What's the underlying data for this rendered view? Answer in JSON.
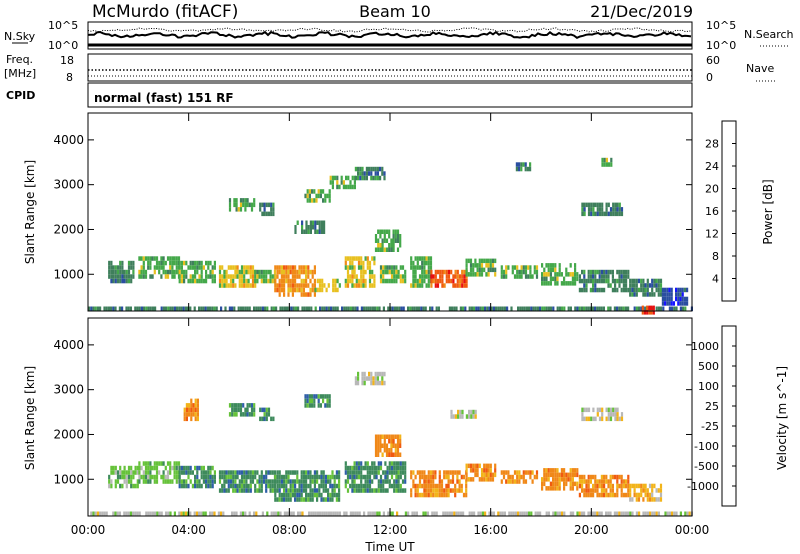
{
  "header": {
    "site": "McMurdo (fitACF)",
    "beam": "Beam 10",
    "date": "21/Dec/2019"
  },
  "noise_panel": {
    "left_label": "N.Sky",
    "right_label": "N.Search",
    "left_ticks": [
      "10^5",
      "10^0"
    ],
    "right_ticks": [
      "10^5",
      "10^0"
    ]
  },
  "freq_panel": {
    "left_label_1": "Freq.",
    "left_label_2": "[MHz]",
    "right_label": "Nave",
    "left_ticks": [
      "18",
      "8"
    ],
    "right_ticks": [
      "60",
      "0"
    ]
  },
  "cpid_panel": {
    "label": "CPID",
    "text": "normal (fast) 151 RF"
  },
  "axes": {
    "ylabel": "Slant Range [km]",
    "xlabel": "Time UT",
    "xticks": [
      "00:00",
      "04:00",
      "08:00",
      "12:00",
      "16:00",
      "20:00",
      "00:00"
    ],
    "yticks": [
      "1000",
      "2000",
      "3000",
      "4000"
    ]
  },
  "colors": {
    "ground_band": "#9a9a9a",
    "bar_black": "#000000"
  },
  "chart_data": [
    {
      "type": "heatmap",
      "title": "",
      "quantity_label": "Power [dB]",
      "xlabel": "Time UT",
      "ylabel": "Slant Range [km]",
      "xlim_hours": [
        0,
        24
      ],
      "ylim_km": [
        180,
        4600
      ],
      "colorbar_ticks": [
        "4",
        "8",
        "12",
        "16",
        "20",
        "24",
        "28"
      ],
      "colorbar_colors": [
        "#1414ff",
        "#2a4ea0",
        "#3f7f5c",
        "#44a84a",
        "#e8c020",
        "#f08a18",
        "#f05a10",
        "#e81010"
      ],
      "regions": [
        {
          "t0": 0.0,
          "t1": 24.0,
          "r0": 180,
          "r1": 280,
          "c": 2
        },
        {
          "t0": 0.8,
          "t1": 1.8,
          "r0": 800,
          "r1": 1300,
          "c": 2
        },
        {
          "t0": 2.0,
          "t1": 3.6,
          "r0": 900,
          "r1": 1400,
          "c": 3
        },
        {
          "t0": 3.6,
          "t1": 5.0,
          "r0": 850,
          "r1": 1300,
          "c": 3
        },
        {
          "t0": 5.2,
          "t1": 6.6,
          "r0": 700,
          "r1": 1200,
          "c": 4
        },
        {
          "t0": 6.6,
          "t1": 7.4,
          "r0": 800,
          "r1": 1100,
          "c": 3
        },
        {
          "t0": 7.4,
          "t1": 9.0,
          "r0": 550,
          "r1": 1200,
          "c": 5
        },
        {
          "t0": 9.0,
          "t1": 10.0,
          "r0": 600,
          "r1": 900,
          "c": 4
        },
        {
          "t0": 10.2,
          "t1": 11.4,
          "r0": 700,
          "r1": 1400,
          "c": 4
        },
        {
          "t0": 11.6,
          "t1": 12.6,
          "r0": 800,
          "r1": 1200,
          "c": 3
        },
        {
          "t0": 12.8,
          "t1": 13.6,
          "r0": 700,
          "r1": 1400,
          "c": 3
        },
        {
          "t0": 13.6,
          "t1": 15.0,
          "r0": 700,
          "r1": 1100,
          "c": 6
        },
        {
          "t0": 15.0,
          "t1": 16.2,
          "r0": 950,
          "r1": 1350,
          "c": 3
        },
        {
          "t0": 16.4,
          "t1": 17.8,
          "r0": 900,
          "r1": 1200,
          "c": 3
        },
        {
          "t0": 18.0,
          "t1": 19.4,
          "r0": 750,
          "r1": 1250,
          "c": 3
        },
        {
          "t0": 19.5,
          "t1": 21.5,
          "r0": 600,
          "r1": 1100,
          "c": 2
        },
        {
          "t0": 21.5,
          "t1": 22.8,
          "r0": 500,
          "r1": 900,
          "c": 2
        },
        {
          "t0": 22.8,
          "t1": 23.8,
          "r0": 300,
          "r1": 700,
          "c": 1
        },
        {
          "t0": 22.0,
          "t1": 22.5,
          "r0": 180,
          "r1": 300,
          "c": 7
        },
        {
          "t0": 5.6,
          "t1": 6.6,
          "r0": 2400,
          "r1": 2700,
          "c": 3
        },
        {
          "t0": 6.8,
          "t1": 7.4,
          "r0": 2300,
          "r1": 2600,
          "c": 2
        },
        {
          "t0": 8.2,
          "t1": 9.4,
          "r0": 1900,
          "r1": 2200,
          "c": 2
        },
        {
          "t0": 8.6,
          "t1": 9.6,
          "r0": 2600,
          "r1": 2900,
          "c": 3
        },
        {
          "t0": 9.6,
          "t1": 10.6,
          "r0": 2900,
          "r1": 3200,
          "c": 3
        },
        {
          "t0": 10.6,
          "t1": 11.8,
          "r0": 3100,
          "r1": 3400,
          "c": 2
        },
        {
          "t0": 11.4,
          "t1": 12.4,
          "r0": 1500,
          "r1": 2000,
          "c": 3
        },
        {
          "t0": 17.0,
          "t1": 17.6,
          "r0": 3300,
          "r1": 3500,
          "c": 2
        },
        {
          "t0": 19.6,
          "t1": 21.2,
          "r0": 2300,
          "r1": 2600,
          "c": 2
        },
        {
          "t0": 20.4,
          "t1": 20.8,
          "r0": 3450,
          "r1": 3600,
          "c": 3
        }
      ]
    },
    {
      "type": "heatmap",
      "title": "",
      "quantity_label": "Velocity [m s^-1]",
      "xlabel": "Time UT",
      "ylabel": "Slant Range [km]",
      "xlim_hours": [
        0,
        24
      ],
      "ylim_km": [
        180,
        4600
      ],
      "colorbar_ticks": [
        "1000",
        "500",
        "100",
        "25",
        "-25",
        "-100",
        "-500",
        "-1000"
      ],
      "colorbar_colors": [
        "#2030c8",
        "#2e5ea8",
        "#3e8a5c",
        "#66c23a",
        "#b8b8b8",
        "#f2b41a",
        "#f08818",
        "#f05a10",
        "#e81010"
      ],
      "regions": [
        {
          "t0": 0.0,
          "t1": 24.0,
          "r0": 180,
          "r1": 280,
          "c": 4
        },
        {
          "t0": 0.8,
          "t1": 2.0,
          "r0": 800,
          "r1": 1300,
          "c": 3
        },
        {
          "t0": 2.0,
          "t1": 3.6,
          "r0": 900,
          "r1": 1400,
          "c": 3
        },
        {
          "t0": 3.6,
          "t1": 5.0,
          "r0": 850,
          "r1": 1300,
          "c": 2
        },
        {
          "t0": 5.2,
          "t1": 7.4,
          "r0": 700,
          "r1": 1200,
          "c": 2
        },
        {
          "t0": 7.4,
          "t1": 10.0,
          "r0": 550,
          "r1": 1200,
          "c": 2
        },
        {
          "t0": 10.2,
          "t1": 12.6,
          "r0": 700,
          "r1": 1400,
          "c": 2
        },
        {
          "t0": 12.8,
          "t1": 15.0,
          "r0": 600,
          "r1": 1200,
          "c": 6
        },
        {
          "t0": 15.0,
          "t1": 16.2,
          "r0": 950,
          "r1": 1350,
          "c": 6
        },
        {
          "t0": 16.4,
          "t1": 17.8,
          "r0": 900,
          "r1": 1200,
          "c": 6
        },
        {
          "t0": 18.0,
          "t1": 19.4,
          "r0": 750,
          "r1": 1250,
          "c": 6
        },
        {
          "t0": 19.5,
          "t1": 21.5,
          "r0": 600,
          "r1": 1100,
          "c": 6
        },
        {
          "t0": 21.5,
          "t1": 22.8,
          "r0": 500,
          "r1": 900,
          "c": 5
        },
        {
          "t0": 5.6,
          "t1": 6.6,
          "r0": 2400,
          "r1": 2700,
          "c": 2
        },
        {
          "t0": 6.8,
          "t1": 7.4,
          "r0": 2300,
          "r1": 2600,
          "c": 2
        },
        {
          "t0": 8.6,
          "t1": 9.6,
          "r0": 2600,
          "r1": 2900,
          "c": 2
        },
        {
          "t0": 10.6,
          "t1": 11.8,
          "r0": 3100,
          "r1": 3400,
          "c": 4
        },
        {
          "t0": 3.8,
          "t1": 4.4,
          "r0": 2300,
          "r1": 2800,
          "c": 6
        },
        {
          "t0": 11.4,
          "t1": 12.4,
          "r0": 1500,
          "r1": 2000,
          "c": 6
        },
        {
          "t0": 19.6,
          "t1": 21.2,
          "r0": 2300,
          "r1": 2600,
          "c": 4
        },
        {
          "t0": 14.4,
          "t1": 15.4,
          "r0": 2350,
          "r1": 2550,
          "c": 4
        }
      ]
    }
  ]
}
